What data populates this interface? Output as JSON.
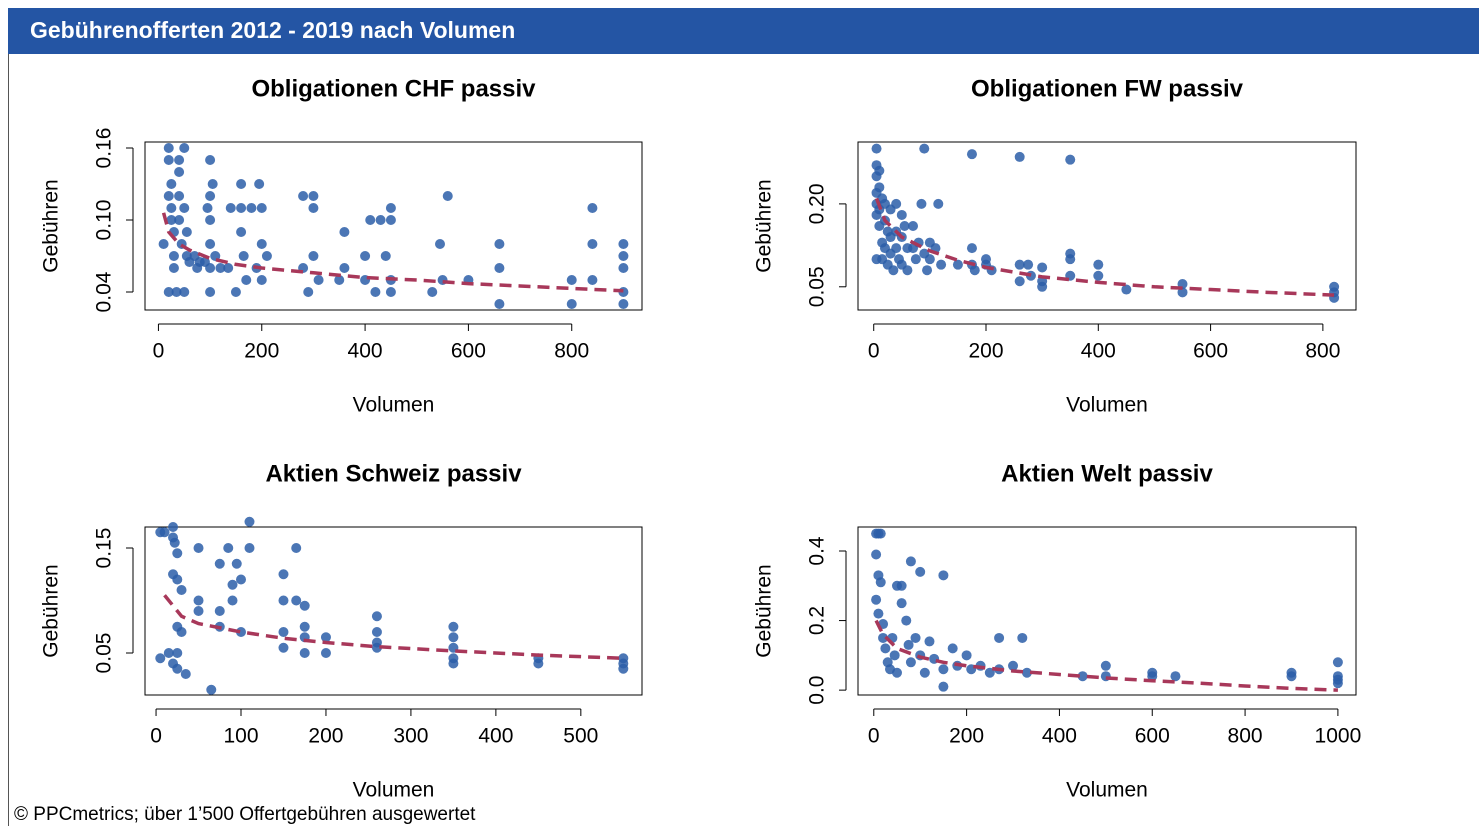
{
  "header": {
    "title": "Gebührenofferten 2012 - 2019 nach Volumen"
  },
  "footer": "© PPCmetrics; über 1’500 Offertgebühren ausgewertet",
  "chart_data": [
    {
      "type": "scatter",
      "title": "Obligationen CHF passiv",
      "xlabel": "Volumen",
      "ylabel": "Gebühren",
      "xlim": [
        -26,
        936
      ],
      "ylim": [
        0.025,
        0.165
      ],
      "xticks": [
        0,
        200,
        400,
        600,
        800
      ],
      "yticks": [
        0.04,
        {
          "value": 0.1,
          "label": "0.10"
        },
        0.16
      ],
      "points": {
        "color": "#2c5ea8",
        "x": [
          10,
          20,
          20,
          20,
          20,
          25,
          25,
          25,
          30,
          30,
          30,
          35,
          40,
          40,
          40,
          40,
          45,
          50,
          50,
          50,
          55,
          55,
          60,
          70,
          75,
          80,
          90,
          95,
          100,
          100,
          100,
          100,
          100,
          100,
          105,
          110,
          120,
          135,
          140,
          150,
          160,
          160,
          160,
          165,
          170,
          180,
          190,
          195,
          200,
          200,
          200,
          210,
          280,
          280,
          290,
          300,
          300,
          300,
          310,
          350,
          360,
          360,
          400,
          400,
          410,
          420,
          430,
          440,
          450,
          450,
          450,
          450,
          530,
          545,
          550,
          560,
          600,
          660,
          660,
          660,
          800,
          800,
          840,
          840,
          840,
          900,
          900,
          900,
          900,
          900
        ],
        "values": [
          0.08,
          0.04,
          0.16,
          0.15,
          0.12,
          0.13,
          0.11,
          0.1,
          0.09,
          0.07,
          0.06,
          0.04,
          0.15,
          0.14,
          0.12,
          0.1,
          0.08,
          0.04,
          0.16,
          0.11,
          0.09,
          0.07,
          0.065,
          0.07,
          0.06,
          0.065,
          0.065,
          0.11,
          0.15,
          0.12,
          0.1,
          0.08,
          0.06,
          0.04,
          0.13,
          0.07,
          0.06,
          0.06,
          0.11,
          0.04,
          0.13,
          0.11,
          0.09,
          0.07,
          0.05,
          0.11,
          0.06,
          0.13,
          0.11,
          0.08,
          0.05,
          0.07,
          0.12,
          0.06,
          0.04,
          0.12,
          0.11,
          0.07,
          0.05,
          0.05,
          0.09,
          0.06,
          0.07,
          0.05,
          0.1,
          0.04,
          0.1,
          0.07,
          0.11,
          0.1,
          0.05,
          0.04,
          0.04,
          0.08,
          0.05,
          0.12,
          0.05,
          0.08,
          0.06,
          0.03,
          0.05,
          0.03,
          0.11,
          0.08,
          0.05,
          0.08,
          0.07,
          0.06,
          0.04,
          0.03
        ]
      },
      "trend": {
        "color": "#a8385a",
        "x": [
          10,
          20,
          40,
          60,
          100,
          150,
          200,
          300,
          400,
          500,
          600,
          700,
          800,
          900
        ],
        "values": [
          0.106,
          0.09,
          0.08,
          0.075,
          0.068,
          0.063,
          0.06,
          0.056,
          0.052,
          0.05,
          0.047,
          0.045,
          0.043,
          0.041
        ]
      }
    },
    {
      "type": "scatter",
      "title": "Obligationen FW passiv",
      "xlabel": "Volumen",
      "ylabel": "Gebühren",
      "xlim": [
        -28,
        859
      ],
      "ylim": [
        0.008,
        0.312
      ],
      "xticks": [
        0,
        200,
        400,
        600,
        800
      ],
      "yticks": [
        0.05,
        {
          "value": 0.2,
          "label": "0.20"
        }
      ],
      "points": {
        "color": "#2c5ea8",
        "x": [
          5,
          5,
          5,
          5,
          5,
          5,
          5,
          10,
          10,
          10,
          10,
          15,
          15,
          15,
          20,
          20,
          20,
          25,
          25,
          30,
          30,
          30,
          35,
          40,
          40,
          40,
          45,
          50,
          50,
          50,
          55,
          60,
          60,
          70,
          70,
          75,
          80,
          85,
          90,
          90,
          95,
          100,
          100,
          110,
          115,
          120,
          150,
          175,
          175,
          175,
          180,
          200,
          200,
          210,
          260,
          260,
          260,
          275,
          280,
          300,
          300,
          300,
          350,
          350,
          350,
          350,
          400,
          400,
          450,
          550,
          550,
          820,
          820,
          820
        ],
        "values": [
          0.3,
          0.27,
          0.25,
          0.22,
          0.2,
          0.18,
          0.1,
          0.26,
          0.23,
          0.19,
          0.16,
          0.21,
          0.13,
          0.1,
          0.2,
          0.17,
          0.12,
          0.15,
          0.09,
          0.19,
          0.14,
          0.11,
          0.08,
          0.2,
          0.15,
          0.12,
          0.1,
          0.18,
          0.14,
          0.09,
          0.16,
          0.12,
          0.08,
          0.16,
          0.12,
          0.1,
          0.13,
          0.2,
          0.3,
          0.11,
          0.08,
          0.13,
          0.1,
          0.12,
          0.2,
          0.09,
          0.09,
          0.29,
          0.12,
          0.09,
          0.08,
          0.1,
          0.09,
          0.08,
          0.285,
          0.09,
          0.06,
          0.09,
          0.07,
          0.085,
          0.06,
          0.05,
          0.28,
          0.11,
          0.1,
          0.07,
          0.09,
          0.07,
          0.045,
          0.055,
          0.04,
          0.05,
          0.04,
          0.03
        ]
      },
      "trend": {
        "color": "#a8385a",
        "x": [
          5,
          20,
          50,
          100,
          150,
          200,
          300,
          400,
          500,
          600,
          700,
          820
        ],
        "values": [
          0.21,
          0.17,
          0.14,
          0.115,
          0.098,
          0.085,
          0.068,
          0.058,
          0.05,
          0.045,
          0.04,
          0.035
        ]
      }
    },
    {
      "type": "scatter",
      "title": "Aktien Schweiz passiv",
      "xlabel": "Volumen",
      "ylabel": "Gebühren",
      "xlim": [
        -13,
        572
      ],
      "ylim": [
        0.01,
        0.17
      ],
      "xticks": [
        0,
        100,
        200,
        300,
        400,
        500
      ],
      "yticks": [
        0.05,
        0.15
      ],
      "points": {
        "color": "#2c5ea8",
        "x": [
          5,
          5,
          10,
          15,
          20,
          20,
          20,
          20,
          22,
          25,
          25,
          25,
          25,
          25,
          30,
          30,
          35,
          50,
          50,
          50,
          65,
          75,
          75,
          75,
          85,
          90,
          90,
          95,
          100,
          100,
          110,
          110,
          150,
          150,
          150,
          150,
          165,
          165,
          175,
          175,
          175,
          175,
          200,
          200,
          260,
          260,
          260,
          260,
          350,
          350,
          350,
          350,
          350,
          450,
          450,
          550,
          550,
          550
        ],
        "values": [
          0.165,
          0.045,
          0.165,
          0.05,
          0.17,
          0.16,
          0.125,
          0.04,
          0.155,
          0.145,
          0.12,
          0.075,
          0.05,
          0.035,
          0.11,
          0.07,
          0.03,
          0.15,
          0.1,
          0.09,
          0.015,
          0.135,
          0.09,
          0.075,
          0.15,
          0.115,
          0.1,
          0.135,
          0.12,
          0.07,
          0.175,
          0.15,
          0.125,
          0.1,
          0.07,
          0.055,
          0.15,
          0.1,
          0.095,
          0.075,
          0.065,
          0.05,
          0.065,
          0.05,
          0.085,
          0.07,
          0.06,
          0.055,
          0.075,
          0.065,
          0.055,
          0.045,
          0.04,
          0.045,
          0.04,
          0.045,
          0.04,
          0.035
        ]
      },
      "trend": {
        "color": "#a8385a",
        "x": [
          10,
          30,
          50,
          100,
          150,
          200,
          260,
          350,
          450,
          550
        ],
        "values": [
          0.105,
          0.085,
          0.078,
          0.07,
          0.064,
          0.06,
          0.056,
          0.052,
          0.048,
          0.045
        ]
      }
    },
    {
      "type": "scatter",
      "title": "Aktien Welt passiv",
      "xlabel": "Volumen",
      "ylabel": "Gebühren",
      "xlim": [
        -34,
        1039
      ],
      "ylim": [
        -0.014,
        0.469
      ],
      "xticks": [
        0,
        200,
        400,
        600,
        800,
        1000
      ],
      "yticks": [
        {
          "value": 0,
          "label": "0.0"
        },
        0.2,
        0.4
      ],
      "points": {
        "color": "#2c5ea8",
        "x": [
          5,
          10,
          15,
          5,
          10,
          15,
          5,
          10,
          20,
          20,
          25,
          30,
          35,
          40,
          45,
          50,
          50,
          60,
          60,
          70,
          75,
          80,
          80,
          90,
          100,
          100,
          110,
          120,
          130,
          150,
          150,
          150,
          170,
          180,
          200,
          210,
          230,
          250,
          270,
          270,
          300,
          320,
          330,
          450,
          500,
          500,
          600,
          600,
          650,
          900,
          900,
          1000,
          1000,
          1000,
          1000
        ],
        "values": [
          0.45,
          0.45,
          0.45,
          0.39,
          0.33,
          0.31,
          0.26,
          0.22,
          0.19,
          0.15,
          0.12,
          0.08,
          0.06,
          0.15,
          0.1,
          0.3,
          0.05,
          0.25,
          0.3,
          0.2,
          0.13,
          0.37,
          0.08,
          0.15,
          0.34,
          0.1,
          0.05,
          0.14,
          0.09,
          0.33,
          0.06,
          0.01,
          0.12,
          0.07,
          0.1,
          0.06,
          0.07,
          0.05,
          0.15,
          0.06,
          0.07,
          0.15,
          0.05,
          0.04,
          0.07,
          0.04,
          0.05,
          0.04,
          0.04,
          0.05,
          0.04,
          0.08,
          0.04,
          0.03,
          0.02
        ]
      },
      "trend": {
        "color": "#a8385a",
        "x": [
          5,
          20,
          50,
          100,
          150,
          200,
          300,
          400,
          500,
          600,
          700,
          800,
          900,
          1000
        ],
        "values": [
          0.2,
          0.16,
          0.12,
          0.095,
          0.08,
          0.07,
          0.055,
          0.045,
          0.035,
          0.027,
          0.02,
          0.012,
          0.005,
          0
        ]
      }
    }
  ]
}
